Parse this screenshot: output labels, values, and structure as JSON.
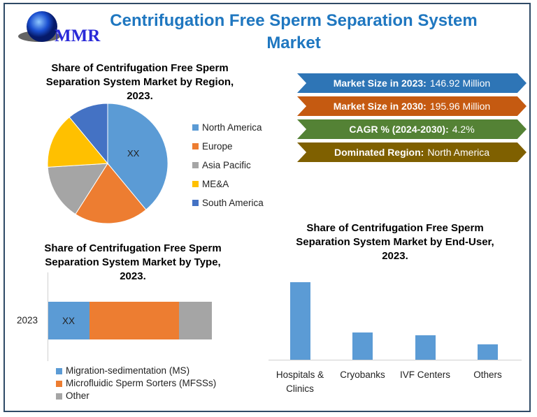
{
  "logo_text": "MMR",
  "title": "Centrifugation Free Sperm Separation System Market",
  "stats": [
    {
      "label": "Market Size in 2023:",
      "value": "146.92 Million",
      "color": "#2e75b6"
    },
    {
      "label": "Market Size in 2030:",
      "value": "195.96 Million",
      "color": "#c55a11"
    },
    {
      "label": "CAGR % (2024-2030):",
      "value": "4.2%",
      "color": "#548235"
    },
    {
      "label": "Dominated Region:",
      "value": "North America",
      "color": "#7f6000"
    }
  ],
  "chart_data": [
    {
      "type": "pie",
      "title": "Share of Centrifugation Free Sperm Separation System Market by Region, 2023.",
      "categories": [
        "North America",
        "Europe",
        "Asia Pacific",
        "ME&A",
        "South America"
      ],
      "values": [
        39,
        20,
        15,
        15,
        11
      ],
      "colors": [
        "#5b9bd5",
        "#ed7d31",
        "#a5a5a5",
        "#ffc000",
        "#4472c4"
      ],
      "data_label": "XX",
      "legend": "right"
    },
    {
      "type": "bar",
      "orientation": "horizontal-stacked",
      "title": "Share of Centrifugation Free Sperm Separation System Market by Type, 2023.",
      "categories": [
        "2023"
      ],
      "series": [
        {
          "name": "Migration-sedimentation (MS)",
          "values": [
            25
          ],
          "color": "#5b9bd5"
        },
        {
          "name": "Microfluidic Sperm Sorters (MFSSs)",
          "values": [
            55
          ],
          "color": "#ed7d31"
        },
        {
          "name": "Other",
          "values": [
            20
          ],
          "color": "#a5a5a5"
        }
      ],
      "data_label": "XX",
      "legend": "bottom"
    },
    {
      "type": "bar",
      "title": "Share of Centrifugation Free Sperm Separation System Market by End-User, 2023.",
      "categories": [
        "Hospitals & Clinics",
        "Cryobanks",
        "IVF Centers",
        "Others"
      ],
      "values": [
        111,
        39,
        35,
        22
      ],
      "color": "#5b9bd5"
    }
  ]
}
